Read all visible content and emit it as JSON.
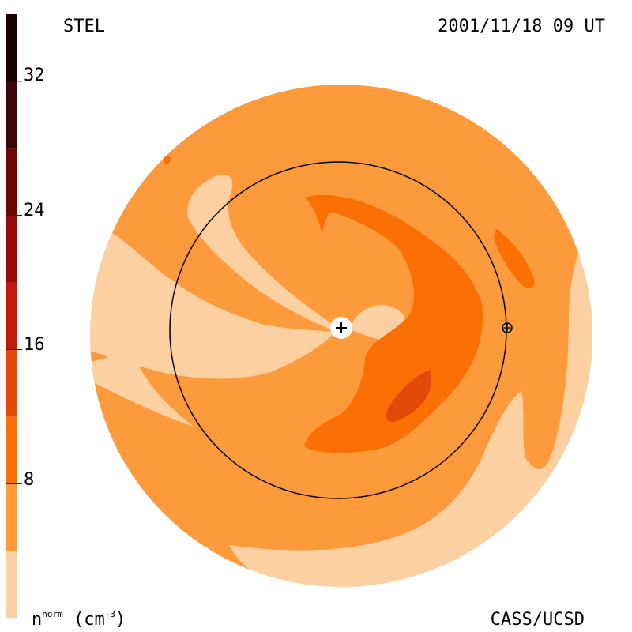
{
  "header": {
    "model": "STEL",
    "timestamp": "2001/11/18 09 UT"
  },
  "footer": {
    "credit": "CASS/UCSD",
    "unit_base": "n",
    "unit_sup": "norm",
    "unit_paren": "(cm",
    "unit_exp": "-3",
    "unit_close": ")"
  },
  "colorbar": {
    "ticks": [
      "32",
      "24",
      "16",
      "8"
    ],
    "tick_values": [
      32,
      24,
      16,
      8
    ],
    "range": [
      0,
      36
    ],
    "levels": [
      {
        "from": 0,
        "to": 4,
        "color": "#fdd0a2"
      },
      {
        "from": 4,
        "to": 8,
        "color": "#fd9a3c"
      },
      {
        "from": 8,
        "to": 12,
        "color": "#fb7004"
      },
      {
        "from": 12,
        "to": 16,
        "color": "#e34a09"
      },
      {
        "from": 16,
        "to": 20,
        "color": "#c01a0c"
      },
      {
        "from": 20,
        "to": 24,
        "color": "#9a0c0a"
      },
      {
        "from": 24,
        "to": 28,
        "color": "#6a0606"
      },
      {
        "from": 28,
        "to": 32,
        "color": "#3e0405"
      },
      {
        "from": 32,
        "to": 36,
        "color": "#1c0202"
      }
    ]
  },
  "colors": {
    "bg_disk": "#fd9a3c",
    "low": "#fdd0a2",
    "mid": "#fb7004",
    "high": "#e34a09",
    "orbit": "#000000",
    "sun": "#ffffff"
  },
  "icons": {
    "sun": "sun-plus-icon",
    "earth": "earth-circled-plus-icon"
  }
}
